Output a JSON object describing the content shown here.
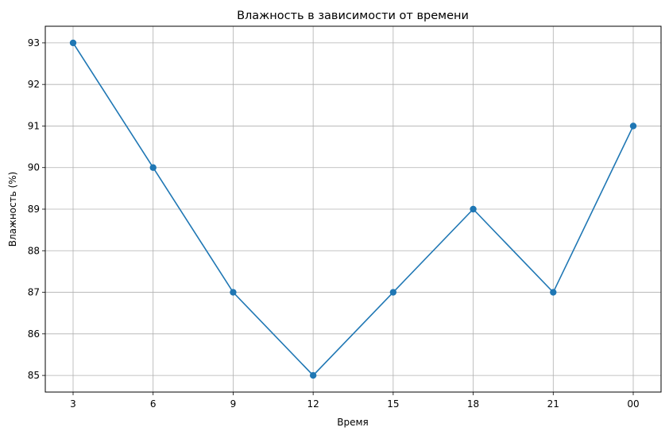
{
  "chart_data": {
    "type": "line",
    "title": "Влажность в зависимости от времени",
    "xlabel": "Время",
    "ylabel": "Влажность (%)",
    "categories": [
      "3",
      "6",
      "9",
      "12",
      "15",
      "18",
      "21",
      "00"
    ],
    "series": [
      {
        "values": [
          93,
          90,
          87,
          85,
          87,
          89,
          87,
          91
        ],
        "color": "#1f77b4",
        "marker": "circle"
      }
    ],
    "yticks": [
      85,
      86,
      87,
      88,
      89,
      90,
      91,
      92,
      93
    ],
    "ylim": [
      84.6,
      93.4
    ],
    "grid": true,
    "legend": "none"
  }
}
